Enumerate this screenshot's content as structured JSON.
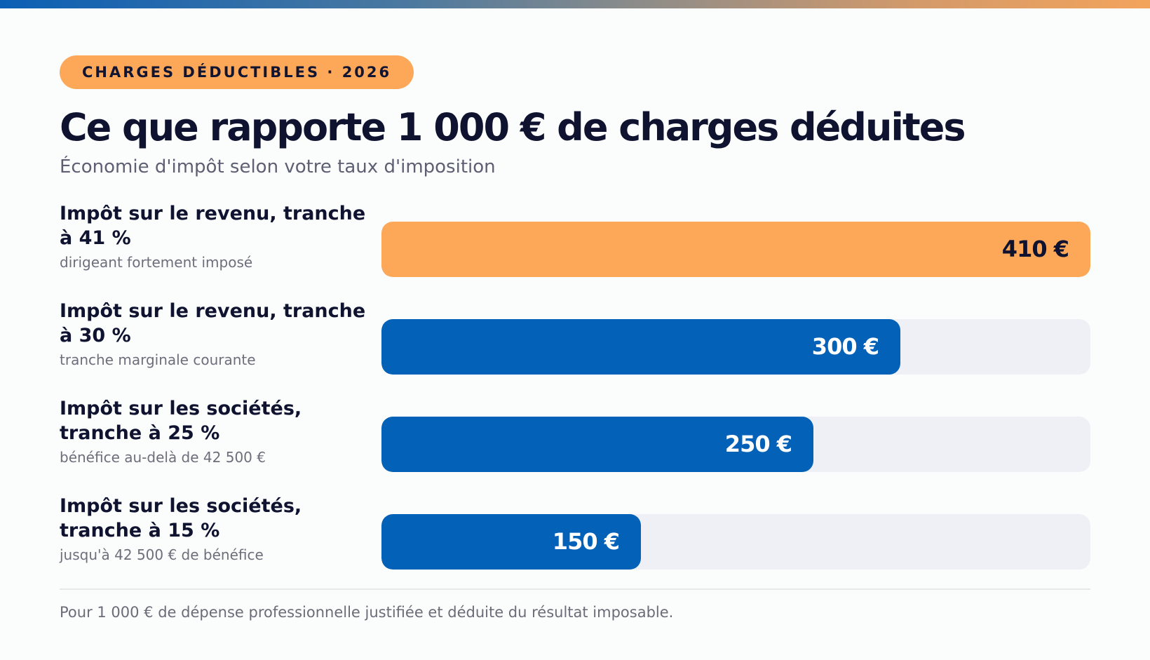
{
  "badge": "CHARGES DÉDUCTIBLES · 2026",
  "title": "Ce que rapporte 1 000 € de charges déduites",
  "subtitle": "Économie d'impôt selon votre taux d'imposition",
  "footnote": "Pour 1 000 € de dépense professionnelle justifiée et déduite du résultat imposable.",
  "colors": {
    "highlight": "#fda758",
    "primary": "#0461b8",
    "track": "#eef0f6",
    "text_dark": "#0f1330"
  },
  "chart_data": {
    "type": "bar",
    "orientation": "horizontal",
    "title": "Ce que rapporte 1 000 € de charges déduites",
    "subtitle": "Économie d'impôt selon votre taux d'imposition",
    "unit": "€",
    "xlim": [
      0,
      410
    ],
    "grid": false,
    "categories": [
      "Impôt sur le revenu, tranche à 41 %",
      "Impôt sur le revenu, tranche à 30 %",
      "Impôt sur les sociétés, tranche à 25 %",
      "Impôt sur les sociétés, tranche à 15 %"
    ],
    "descriptions": [
      "dirigeant fortement imposé",
      "tranche marginale courante",
      "bénéfice au-delà de 42 500 €",
      "jusqu'à 42 500 € de bénéfice"
    ],
    "values": [
      410,
      300,
      250,
      150
    ],
    "value_labels": [
      "410 €",
      "300 €",
      "250 €",
      "150 €"
    ],
    "bar_colors": [
      "#fda758",
      "#0461b8",
      "#0461b8",
      "#0461b8"
    ]
  }
}
